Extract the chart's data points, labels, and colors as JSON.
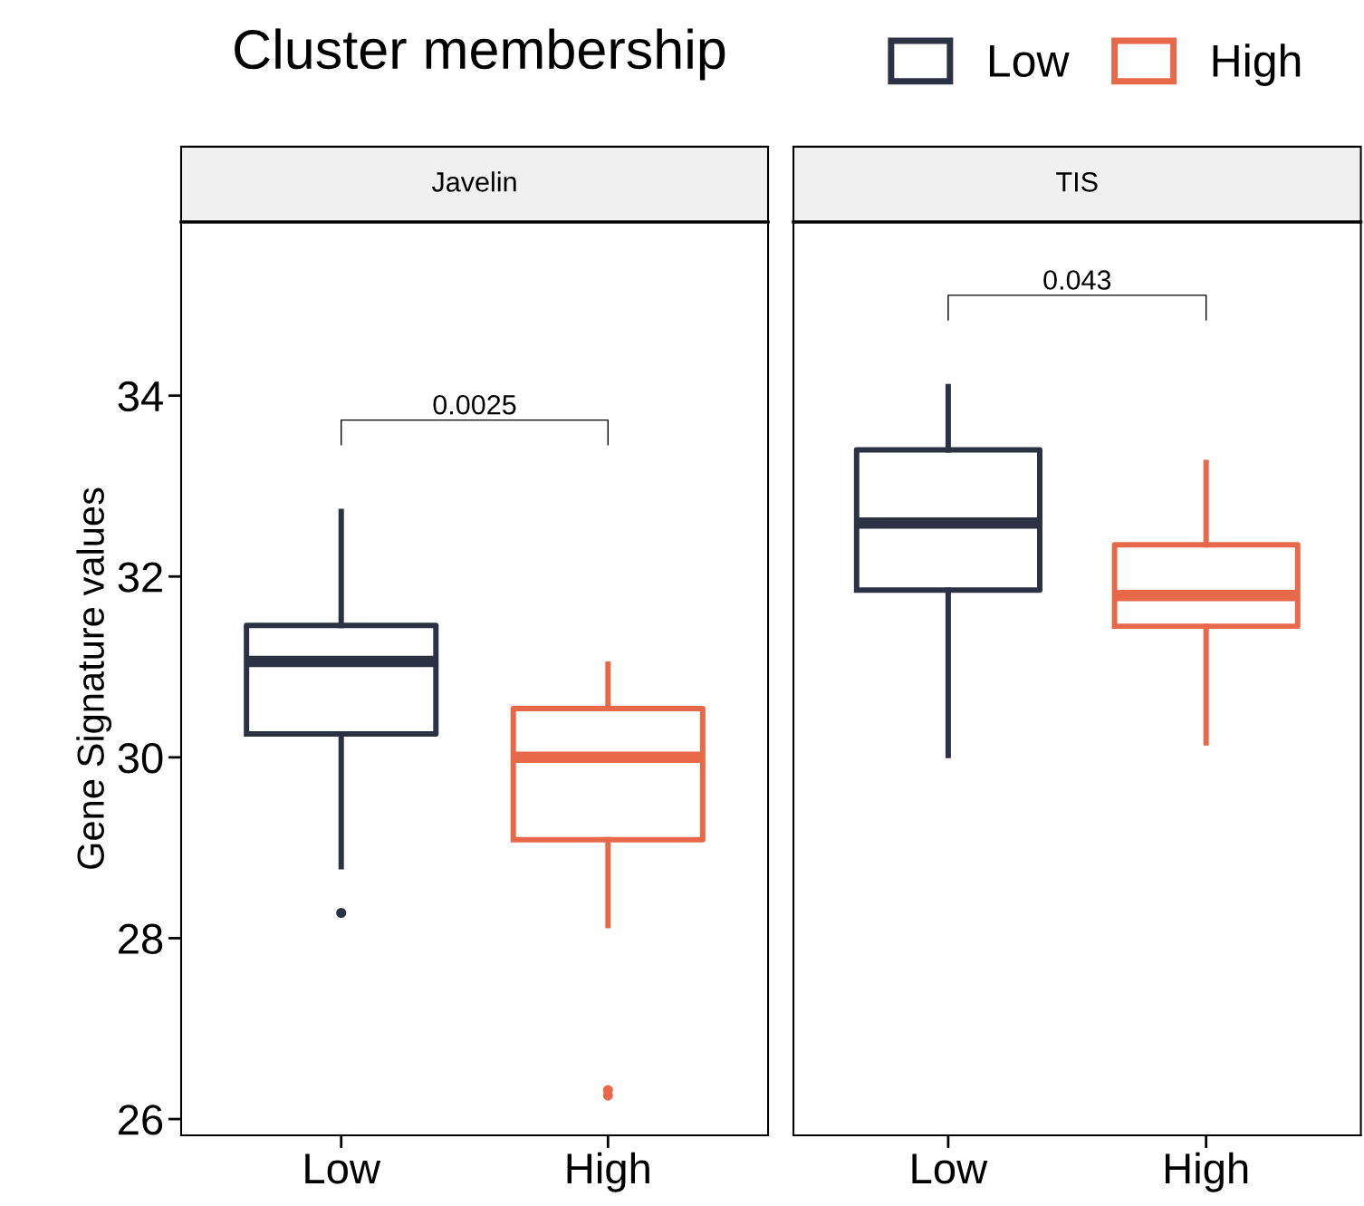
{
  "chart_data": [
    {
      "type": "box",
      "title": "Javelin",
      "ylabel": "Gene Signature values",
      "legend_title": "Cluster membership",
      "legend": "top",
      "categories": [
        "Low",
        "High"
      ],
      "ylim": [
        25.82,
        35.92
      ],
      "yticks": [
        26,
        28,
        30,
        32,
        34
      ],
      "annotations": [
        "0.0025"
      ],
      "series": [
        {
          "name": "Low",
          "color": "#2a3244",
          "boxes": [
            {
              "low": 28.79,
              "q1": 30.26,
              "median": 31.06,
              "q3": 31.46,
              "high": 32.72,
              "outliers": [
                28.28
              ]
            },
            null
          ]
        },
        {
          "name": "High",
          "color": "#e8694a",
          "boxes": [
            null,
            {
              "low": 28.14,
              "q1": 29.09,
              "median": 30.0,
              "q3": 30.54,
              "high": 31.03,
              "outliers": [
                26.32,
                26.26
              ]
            }
          ]
        }
      ]
    },
    {
      "type": "box",
      "title": "TIS",
      "categories": [
        "Low",
        "High"
      ],
      "ylim": [
        25.82,
        35.92
      ],
      "yticks": [
        26,
        28,
        30,
        32,
        34
      ],
      "tick_labels": "x",
      "annotations": [
        "0.043"
      ],
      "series": [
        {
          "color": "#2a3244",
          "boxes": [
            {
              "low": 30.02,
              "q1": 31.85,
              "median": 32.59,
              "q3": 33.4,
              "high": 34.1
            },
            null
          ]
        },
        {
          "color": "#e8694a",
          "boxes": [
            null,
            {
              "low": 30.16,
              "q1": 31.45,
              "median": 31.79,
              "q3": 32.35,
              "high": 33.26
            }
          ]
        }
      ]
    }
  ]
}
